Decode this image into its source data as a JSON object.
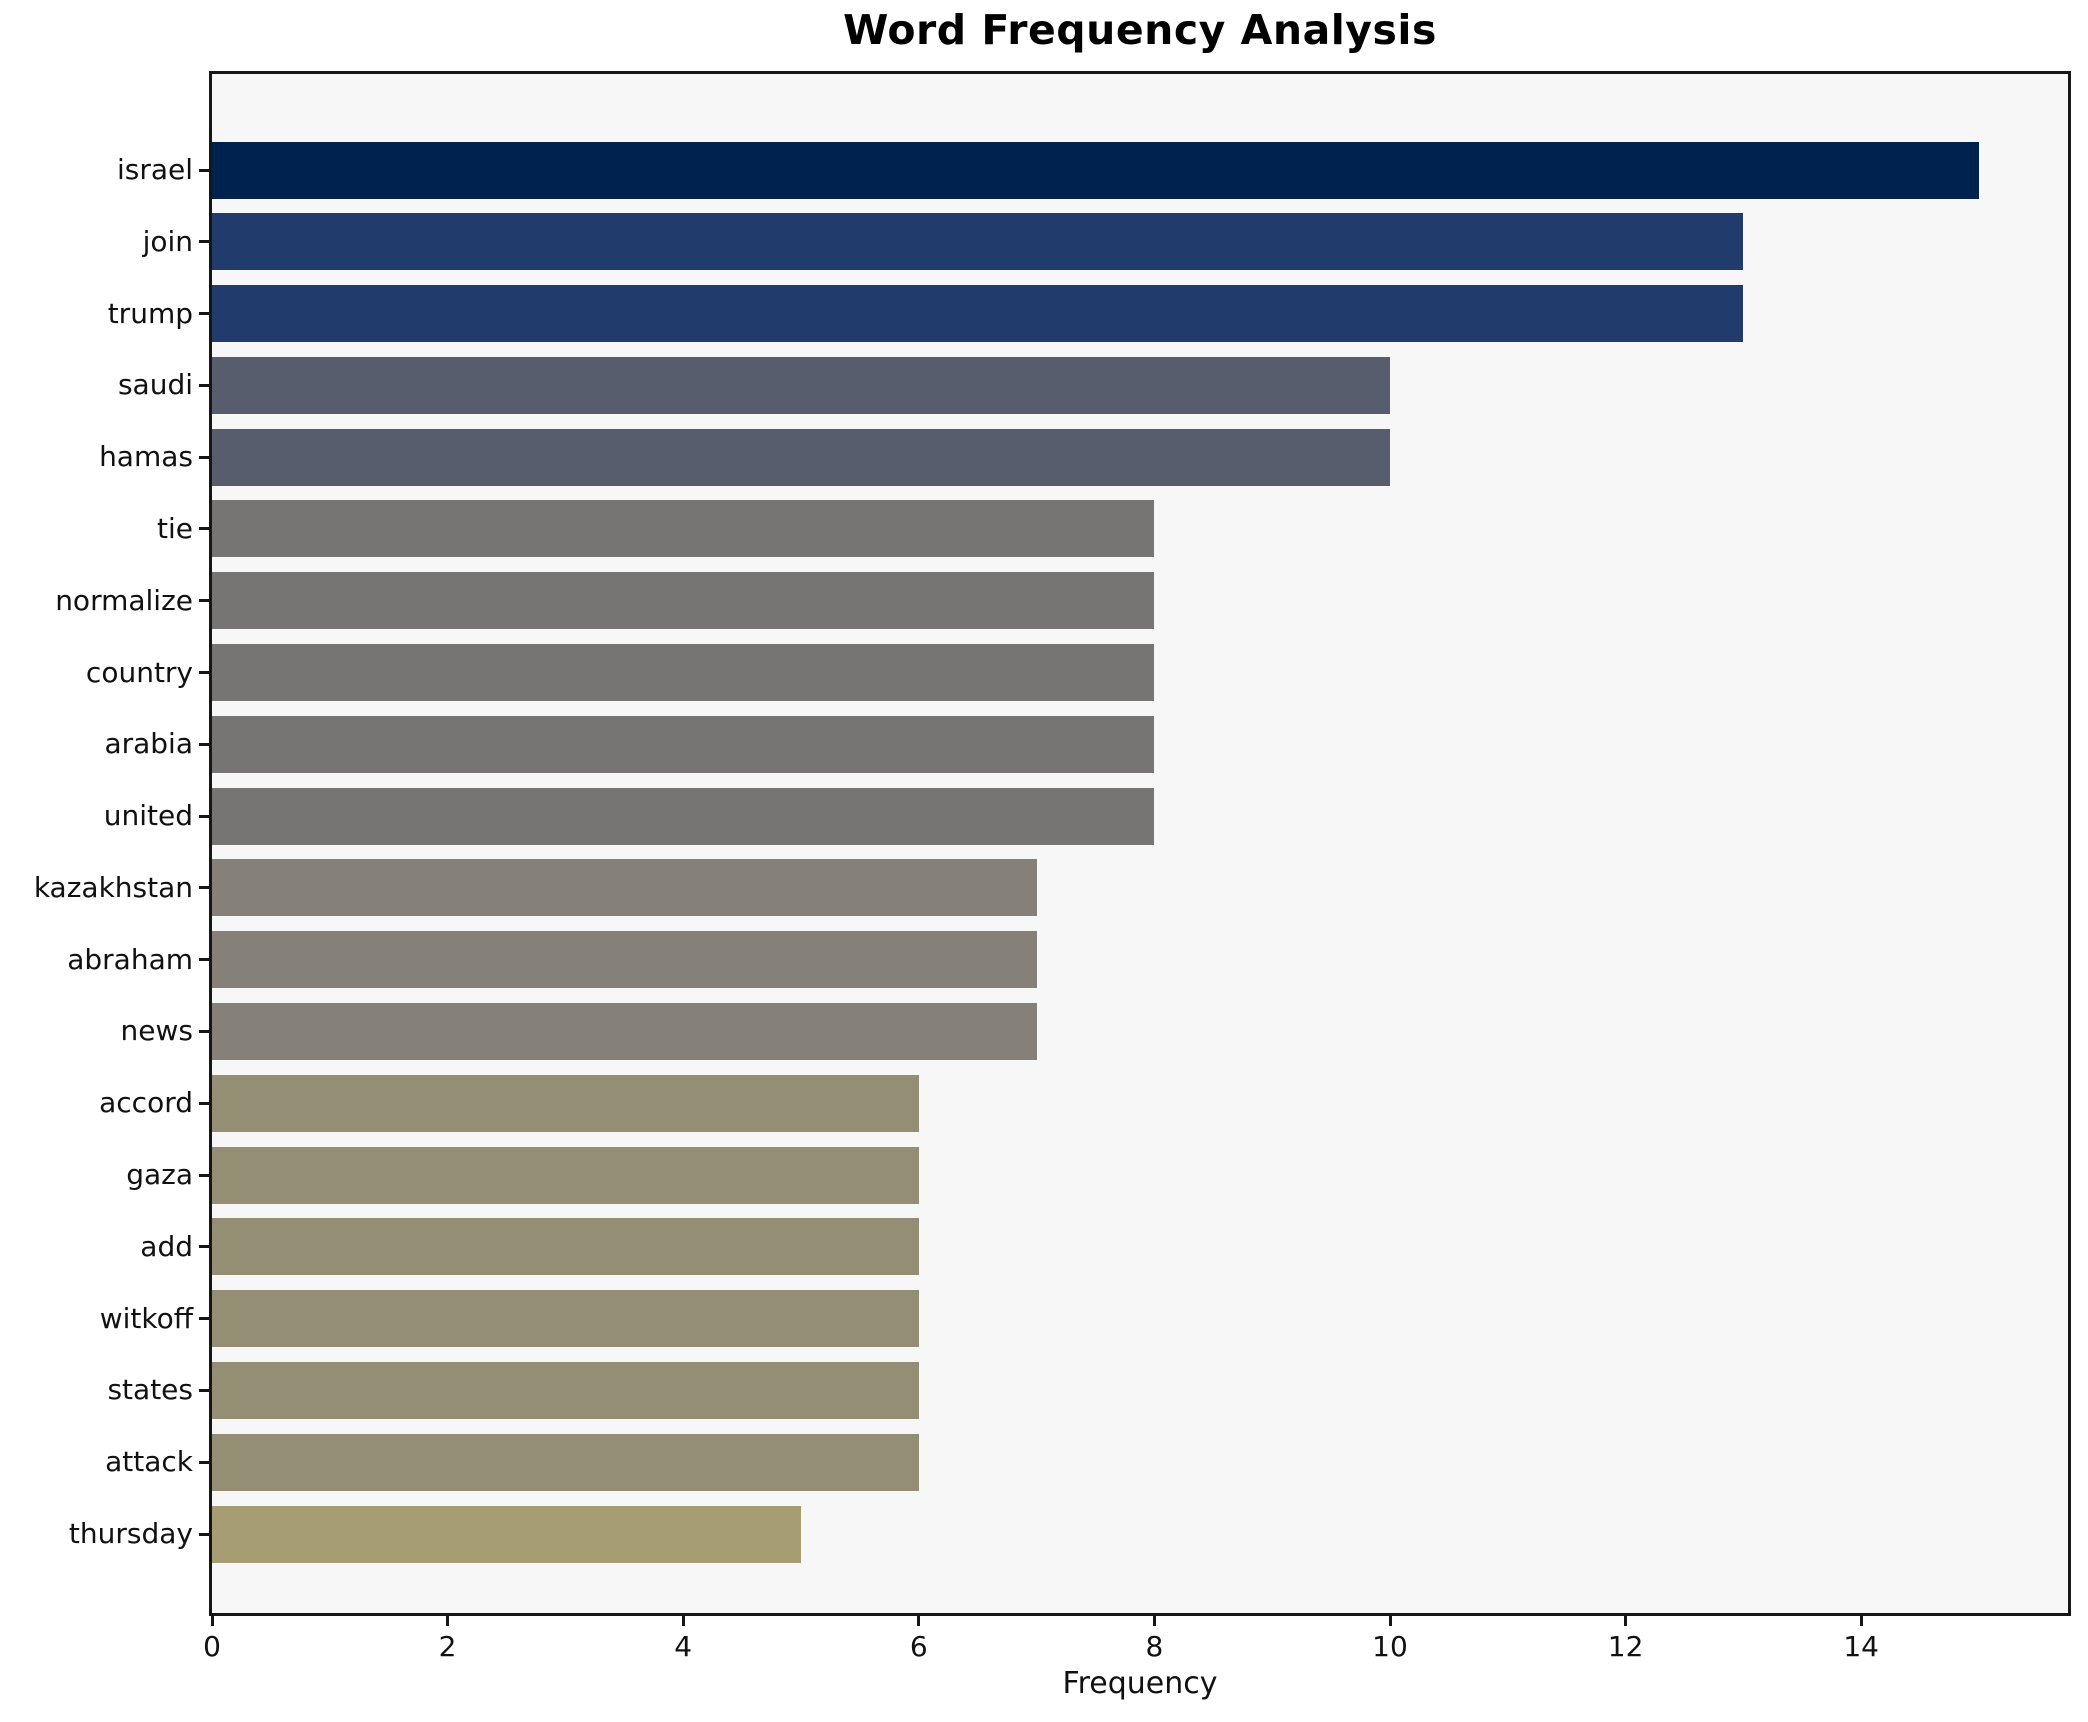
{
  "title": "Word Frequency Analysis",
  "chart_data": {
    "type": "bar",
    "orientation": "horizontal",
    "title": "Word Frequency Analysis",
    "xlabel": "Frequency",
    "ylabel": "",
    "xlim": [
      0,
      15.75
    ],
    "xticks": [
      0,
      2,
      4,
      6,
      8,
      10,
      12,
      14
    ],
    "grid": false,
    "legend": "none",
    "plot_background": "#f7f7f7",
    "figure_background": "#ffffff",
    "spine_color": "#161616",
    "categories": [
      "israel",
      "join",
      "trump",
      "saudi",
      "hamas",
      "tie",
      "normalize",
      "country",
      "arabia",
      "united",
      "kazakhstan",
      "abraham",
      "news",
      "accord",
      "gaza",
      "add",
      "witkoff",
      "states",
      "attack",
      "thursday"
    ],
    "values": [
      15,
      13,
      13,
      10,
      10,
      8,
      8,
      8,
      8,
      8,
      7,
      7,
      7,
      6,
      6,
      6,
      6,
      6,
      6,
      5
    ],
    "bar_colors": [
      "#00224e",
      "#213c6c",
      "#213c6c",
      "#575d6c",
      "#575d6c",
      "#767573",
      "#767573",
      "#767573",
      "#767573",
      "#767573",
      "#858078",
      "#858078",
      "#858078",
      "#948e74",
      "#948e74",
      "#948e74",
      "#948e74",
      "#948e74",
      "#948e74",
      "#a69d72"
    ]
  }
}
